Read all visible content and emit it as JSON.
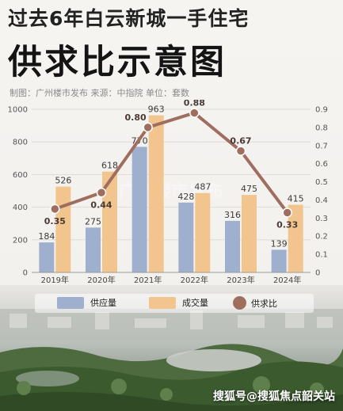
{
  "header": {
    "title_line1": "过去6年白云新城一手住宅",
    "title_line2": "供求比示意图",
    "meta": "制图：广州楼市发布   来源：中指院   单位：套数"
  },
  "chart_data": {
    "type": "bar",
    "categories": [
      "2019年",
      "2020年",
      "2021年",
      "2022年",
      "2023年",
      "2024年"
    ],
    "series": [
      {
        "name": "供应量",
        "type": "bar",
        "color": "#9fb0cf",
        "values": [
          184,
          275,
          770,
          428,
          316,
          139
        ]
      },
      {
        "name": "成交量",
        "type": "bar",
        "color": "#f1c58d",
        "values": [
          526,
          618,
          963,
          487,
          475,
          415
        ]
      },
      {
        "name": "供求比",
        "type": "line",
        "color": "#a06e5e",
        "axis": "right",
        "values": [
          0.35,
          0.44,
          0.8,
          0.88,
          0.67,
          0.33
        ]
      }
    ],
    "y_left": {
      "range": [
        0,
        1000
      ],
      "ticks": [
        0,
        200,
        400,
        600,
        800,
        1000
      ]
    },
    "y_right": {
      "range": [
        0,
        0.9
      ],
      "ticks": [
        "0",
        "0.1",
        "0.2",
        "0.3",
        "0.4",
        "0.5",
        "0.6",
        "0.7",
        "0.8",
        "0.9"
      ]
    },
    "grid": true,
    "legend_position": "bottom",
    "watermark": "广州楼市发布"
  },
  "footer": {
    "watermark": "搜狐号@搜狐焦点韶关站"
  }
}
